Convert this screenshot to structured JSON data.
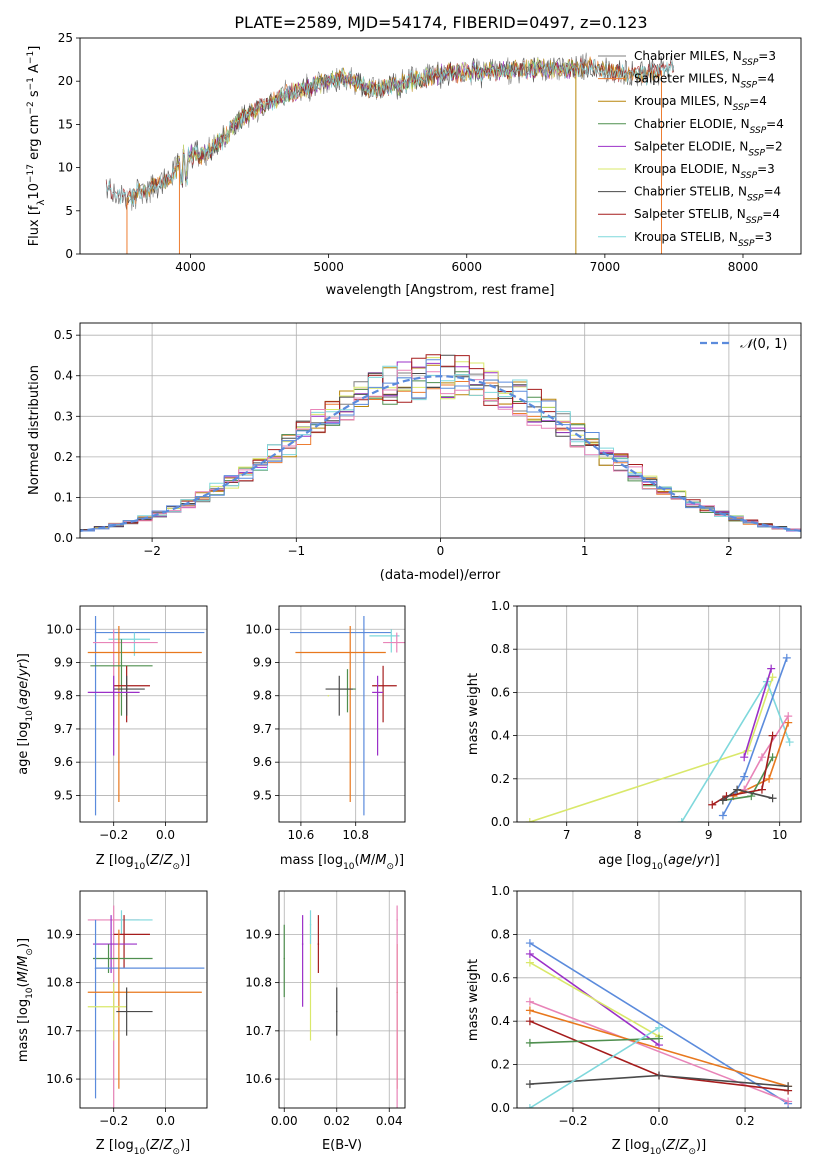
{
  "figure": {
    "title": "PLATE=2589, MJD=54174, FIBERID=0497, z=0.123"
  },
  "colors": {
    "Chabrier MILES": "#7f7f7f",
    "Salpeter MILES": "#ed7d31",
    "Kroupa MILES": "#b8860b",
    "Chabrier ELODIE": "#4f8f4f",
    "Salpeter ELODIE": "#9b30c8",
    "Kroupa ELODIE": "#d9e86a",
    "Chabrier STELIB": "#4a4a4a",
    "Salpeter STELIB": "#a51c1c",
    "Kroupa STELIB": "#7fd8dc",
    "blue": "#5b8bdc",
    "pink": "#e884b8",
    "orange": "#e8781e",
    "gridline": "#b0b0b0"
  },
  "chart_data": [
    {
      "id": "spectrum",
      "type": "line",
      "xlabel": "wavelength [Angstrom, rest frame]",
      "ylabel": "Flux [f_λ10^-17 erg cm^-2 s^-1 A^-1]",
      "xlim": [
        3200,
        8420
      ],
      "ylim": [
        0,
        25
      ],
      "xticks": [
        4000,
        5000,
        6000,
        7000,
        8000
      ],
      "yticks": [
        0,
        5,
        10,
        15,
        20,
        25
      ],
      "legend_position": "top-right",
      "legend": [
        "Chabrier MILES, N_SSP=3",
        "Salpeter MILES, N_SSP=4",
        "Kroupa MILES, N_SSP=4",
        "Chabrier ELODIE, N_SSP=4",
        "Salpeter ELODIE, N_SSP=2",
        "Kroupa ELODIE, N_SSP=3",
        "Chabrier STELIB, N_SSP=4",
        "Salpeter STELIB, N_SSP=4",
        "Kroupa STELIB, N_SSP=3"
      ],
      "series_colors": [
        "#7f7f7f",
        "#ed7d31",
        "#b8860b",
        "#4f8f4f",
        "#9b30c8",
        "#d9e86a",
        "#4a4a4a",
        "#a51c1c",
        "#7fd8dc"
      ],
      "continuum": {
        "x": [
          3390,
          3550,
          3700,
          3850,
          3950,
          4100,
          4250,
          4350,
          4500,
          4700,
          4900,
          5100,
          5300,
          5500,
          5700,
          5900,
          6100,
          6300,
          6500,
          6700,
          6900,
          7100,
          7300,
          7500
        ],
        "y": [
          7.5,
          6.5,
          7.5,
          8.5,
          11.5,
          11.5,
          13.5,
          15.5,
          17.0,
          18.5,
          19.5,
          20.5,
          19.0,
          19.5,
          20.5,
          21.0,
          21.0,
          21.2,
          21.5,
          21.2,
          21.8,
          21.0,
          20.8,
          21.6
        ]
      },
      "ranges": {
        "MILES": [
          3540,
          7410
        ],
        "ELODIE": [
          3900,
          6800
        ],
        "STELIB": [
          3390,
          7500
        ]
      },
      "drop_edges": [
        3540,
        3920,
        6790,
        7410
      ]
    },
    {
      "id": "residuals",
      "type": "histogram",
      "xlabel": "(data-model)/error",
      "ylabel": "Normed distribution",
      "xlim": [
        -2.5,
        2.5
      ],
      "ylim": [
        0,
        0.53
      ],
      "xticks": [
        -2,
        -1,
        0,
        1,
        2
      ],
      "yticks": [
        0.0,
        0.1,
        0.2,
        0.3,
        0.4,
        0.5
      ],
      "bin_width": 0.1,
      "legend": [
        "N(0,1)"
      ],
      "legend_position": "top-right",
      "reference_curve": "gaussian_mu0_sigma1"
    },
    {
      "id": "age_vs_Z",
      "type": "scatter",
      "xlabel": "Z [log10(Z/Z⊙)]",
      "ylabel": "age [log10(age/yr)]",
      "xlim": [
        -0.33,
        0.16
      ],
      "ylim": [
        9.42,
        10.07
      ],
      "xticks": [
        -0.2,
        0.0
      ],
      "yticks": [
        9.5,
        9.6,
        9.7,
        9.8,
        9.9,
        10.0
      ],
      "points": [
        {
          "color": "#5b8bdc",
          "x": -0.27,
          "xerr": [
            0.0,
            0.42
          ],
          "y": 9.99,
          "yerr": [
            0.55,
            0.05
          ]
        },
        {
          "color": "#7fd8dc",
          "x": -0.12,
          "xerr": [
            0.1,
            0.06
          ],
          "y": 9.97,
          "yerr": [
            0.05,
            0.02
          ]
        },
        {
          "color": "#e884b8",
          "x": -0.2,
          "xerr": [
            0.08,
            0.17
          ],
          "y": 9.96,
          "yerr": [
            0.25,
            0.04
          ]
        },
        {
          "color": "#e8781e",
          "x": -0.18,
          "xerr": [
            0.12,
            0.32
          ],
          "y": 9.93,
          "yerr": [
            0.45,
            0.08
          ]
        },
        {
          "color": "#4f8f4f",
          "x": -0.17,
          "xerr": [
            0.12,
            0.12
          ],
          "y": 9.89,
          "yerr": [
            0.15,
            0.08
          ]
        },
        {
          "color": "#a51c1c",
          "x": -0.15,
          "xerr": [
            0.05,
            0.09
          ],
          "y": 9.83,
          "yerr": [
            0.11,
            0.06
          ]
        },
        {
          "color": "#4a4a4a",
          "x": -0.15,
          "xerr": [
            0.05,
            0.07
          ],
          "y": 9.82,
          "yerr": [
            0.08,
            0.04
          ]
        },
        {
          "color": "#9b30c8",
          "x": -0.2,
          "xerr": [
            0.1,
            0.1
          ],
          "y": 9.81,
          "yerr": [
            0.19,
            0.05
          ]
        }
      ]
    },
    {
      "id": "age_vs_mass",
      "type": "scatter",
      "xlabel": "mass [log10(M/M⊙)]",
      "ylabel": "",
      "xlim": [
        10.52,
        10.98
      ],
      "ylim": [
        9.42,
        10.07
      ],
      "xticks": [
        10.6,
        10.8
      ],
      "yticks": [
        9.5,
        9.6,
        9.7,
        9.8,
        9.9,
        10.0
      ],
      "points": [
        {
          "color": "#5b8bdc",
          "x": 10.83,
          "xerr": [
            0.27,
            0.1
          ],
          "y": 9.99,
          "yerr": [
            0.55,
            0.05
          ]
        },
        {
          "color": "#7fd8dc",
          "x": 10.93,
          "xerr": [
            0.08,
            0.03
          ],
          "y": 9.98,
          "yerr": [
            0.05,
            0.02
          ]
        },
        {
          "color": "#e884b8",
          "x": 10.95,
          "xerr": [
            0.05,
            0.03
          ],
          "y": 9.96,
          "yerr": [
            0.03,
            0.03
          ]
        },
        {
          "color": "#e8781e",
          "x": 10.78,
          "xerr": [
            0.2,
            0.13
          ],
          "y": 9.93,
          "yerr": [
            0.45,
            0.08
          ]
        },
        {
          "color": "#4f8f4f",
          "x": 10.77,
          "xerr": [
            0.03,
            0.03
          ],
          "y": 9.82,
          "yerr": [
            0.07,
            0.06
          ]
        },
        {
          "color": "#a51c1c",
          "x": 10.9,
          "xerr": [
            0.04,
            0.05
          ],
          "y": 9.83,
          "yerr": [
            0.11,
            0.06
          ]
        },
        {
          "color": "#4a4a4a",
          "x": 10.74,
          "xerr": [
            0.05,
            0.05
          ],
          "y": 9.82,
          "yerr": [
            0.08,
            0.04
          ]
        },
        {
          "color": "#9b30c8",
          "x": 10.88,
          "xerr": [
            0.02,
            0.02
          ],
          "y": 9.81,
          "yerr": [
            0.19,
            0.05
          ]
        },
        {
          "color": "#d9e86a",
          "x": 10.7,
          "xerr": [
            0.0,
            0.0
          ],
          "y": 9.8,
          "yerr": [
            0.0,
            0.0
          ]
        }
      ]
    },
    {
      "id": "weight_vs_age",
      "type": "line",
      "xlabel": "age [log10(age/yr)]",
      "ylabel": "mass weight",
      "xlim": [
        6.3,
        10.3
      ],
      "ylim": [
        0,
        1.0
      ],
      "xticks": [
        7,
        8,
        9,
        10
      ],
      "yticks": [
        0.0,
        0.2,
        0.4,
        0.6,
        0.8,
        1.0
      ],
      "series": [
        {
          "color": "#d9e86a",
          "x": [
            6.48,
            9.55,
            9.9
          ],
          "y": [
            0.0,
            0.33,
            0.67
          ]
        },
        {
          "color": "#7fd8dc",
          "x": [
            8.62,
            9.82,
            10.14
          ],
          "y": [
            0.0,
            0.65,
            0.37
          ]
        },
        {
          "color": "#5b8bdc",
          "x": [
            9.2,
            9.5,
            10.1
          ],
          "y": [
            0.03,
            0.21,
            0.76
          ]
        },
        {
          "color": "#9b30c8",
          "x": [
            9.5,
            9.88
          ],
          "y": [
            0.3,
            0.71
          ]
        },
        {
          "color": "#e8781e",
          "x": [
            9.35,
            9.85,
            10.12
          ],
          "y": [
            0.12,
            0.2,
            0.46
          ]
        },
        {
          "color": "#e884b8",
          "x": [
            9.5,
            9.75,
            10.12
          ],
          "y": [
            0.15,
            0.3,
            0.49
          ]
        },
        {
          "color": "#4f8f4f",
          "x": [
            9.2,
            9.6,
            9.9
          ],
          "y": [
            0.1,
            0.12,
            0.3
          ]
        },
        {
          "color": "#a51c1c",
          "x": [
            9.05,
            9.25,
            9.75,
            9.9
          ],
          "y": [
            0.08,
            0.12,
            0.15,
            0.4
          ]
        },
        {
          "color": "#4a4a4a",
          "x": [
            9.2,
            9.4,
            9.9
          ],
          "y": [
            0.1,
            0.15,
            0.11
          ]
        }
      ]
    },
    {
      "id": "mass_vs_Z",
      "type": "scatter",
      "xlabel": "Z [log10(Z/Z⊙)]",
      "ylabel": "mass [log10(M/M⊙)]",
      "xlim": [
        -0.33,
        0.16
      ],
      "ylim": [
        10.54,
        10.99
      ],
      "xticks": [
        -0.2,
        0.0
      ],
      "yticks": [
        10.6,
        10.7,
        10.8,
        10.9
      ],
      "points": [
        {
          "color": "#e884b8",
          "x": -0.2,
          "xerr": [
            0.1,
            0.1
          ],
          "y": 10.93,
          "yerr": [
            0.4,
            0.03
          ]
        },
        {
          "color": "#7fd8dc",
          "x": -0.17,
          "xerr": [
            0.0,
            0.12
          ],
          "y": 10.93,
          "yerr": [
            0.03,
            0.02
          ]
        },
        {
          "color": "#a51c1c",
          "x": -0.16,
          "xerr": [
            0.04,
            0.1
          ],
          "y": 10.9,
          "yerr": [
            0.07,
            0.04
          ]
        },
        {
          "color": "#9b30c8",
          "x": -0.21,
          "xerr": [
            0.07,
            0.1
          ],
          "y": 10.88,
          "yerr": [
            0.06,
            0.06
          ]
        },
        {
          "color": "#4f8f4f",
          "x": -0.22,
          "xerr": [
            0.06,
            0.17
          ],
          "y": 10.85,
          "yerr": [
            0.03,
            0.03
          ]
        },
        {
          "color": "#5b8bdc",
          "x": -0.27,
          "xerr": [
            0.0,
            0.42
          ],
          "y": 10.83,
          "yerr": [
            0.27,
            0.1
          ]
        },
        {
          "color": "#e8781e",
          "x": -0.18,
          "xerr": [
            0.12,
            0.32
          ],
          "y": 10.78,
          "yerr": [
            0.2,
            0.13
          ]
        },
        {
          "color": "#d9e86a",
          "x": -0.2,
          "xerr": [
            0.1,
            0.05
          ],
          "y": 10.75,
          "yerr": [
            0.07,
            0.05
          ]
        },
        {
          "color": "#4a4a4a",
          "x": -0.15,
          "xerr": [
            0.04,
            0.1
          ],
          "y": 10.74,
          "yerr": [
            0.05,
            0.05
          ]
        }
      ]
    },
    {
      "id": "mass_vs_ebv",
      "type": "scatter",
      "xlabel": "E(B-V)",
      "ylabel": "",
      "xlim": [
        -0.002,
        0.046
      ],
      "ylim": [
        10.54,
        10.99
      ],
      "xticks": [
        0.0,
        0.02,
        0.04
      ],
      "yticks": [
        10.6,
        10.7,
        10.8,
        10.9
      ],
      "points": [
        {
          "color": "#4f8f4f",
          "x": 0.0,
          "y": 10.85,
          "yerr": [
            0.08,
            0.07
          ]
        },
        {
          "color": "#9b30c8",
          "x": 0.007,
          "y": 10.88,
          "yerr": [
            0.13,
            0.06
          ]
        },
        {
          "color": "#d9e86a",
          "x": 0.01,
          "y": 10.8,
          "yerr": [
            0.12,
            0.13
          ]
        },
        {
          "color": "#7fd8dc",
          "x": 0.01,
          "y": 10.92,
          "yerr": [
            0.04,
            0.03
          ]
        },
        {
          "color": "#a51c1c",
          "x": 0.013,
          "y": 10.88,
          "yerr": [
            0.06,
            0.06
          ]
        },
        {
          "color": "#4a4a4a",
          "x": 0.02,
          "y": 10.74,
          "yerr": [
            0.05,
            0.05
          ]
        },
        {
          "color": "#e8781e",
          "x": 0.043,
          "y": 10.78,
          "yerr": [
            0.2,
            0.1
          ]
        },
        {
          "color": "#e884b8",
          "x": 0.043,
          "y": 10.93,
          "yerr": [
            0.4,
            0.03
          ]
        }
      ]
    },
    {
      "id": "weight_vs_Z",
      "type": "line",
      "xlabel": "Z [log10(Z/Z⊙)]",
      "ylabel": "mass weight",
      "xlim": [
        -0.33,
        0.33
      ],
      "ylim": [
        0,
        1.0
      ],
      "xticks": [
        -0.2,
        0.0,
        0.2
      ],
      "yticks": [
        0.0,
        0.2,
        0.4,
        0.6,
        0.8,
        1.0
      ],
      "series": [
        {
          "color": "#5b8bdc",
          "x": [
            -0.3,
            0.3
          ],
          "y": [
            0.76,
            0.02
          ]
        },
        {
          "color": "#9b30c8",
          "x": [
            -0.3,
            0.0
          ],
          "y": [
            0.71,
            0.29
          ]
        },
        {
          "color": "#d9e86a",
          "x": [
            -0.3,
            0.0
          ],
          "y": [
            0.67,
            0.33
          ]
        },
        {
          "color": "#e884b8",
          "x": [
            -0.3,
            0.3
          ],
          "y": [
            0.49,
            0.03
          ]
        },
        {
          "color": "#e8781e",
          "x": [
            -0.3,
            0.3
          ],
          "y": [
            0.45,
            0.1
          ]
        },
        {
          "color": "#a51c1c",
          "x": [
            -0.3,
            0.0,
            0.3
          ],
          "y": [
            0.4,
            0.15,
            0.08
          ]
        },
        {
          "color": "#4f8f4f",
          "x": [
            -0.3,
            0.0
          ],
          "y": [
            0.3,
            0.32
          ]
        },
        {
          "color": "#4a4a4a",
          "x": [
            -0.3,
            0.0,
            0.3
          ],
          "y": [
            0.11,
            0.15,
            0.1
          ]
        },
        {
          "color": "#7fd8dc",
          "x": [
            -0.3,
            0.0
          ],
          "y": [
            0.0,
            0.37
          ]
        }
      ]
    }
  ]
}
